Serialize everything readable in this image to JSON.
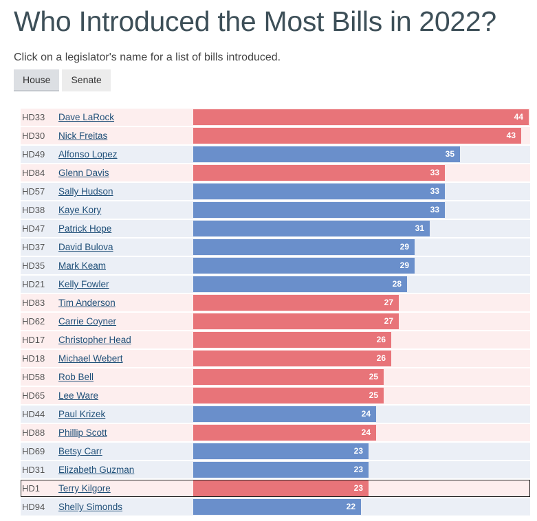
{
  "title": "Who Introduced the Most Bills in 2022?",
  "subtitle": "Click on a legislator's name for a list of bills introduced.",
  "tabs": [
    {
      "label": "House",
      "active": true
    },
    {
      "label": "Senate",
      "active": false
    }
  ],
  "colors": {
    "republican_bar": "#e87479",
    "democrat_bar": "#6a8fcb",
    "republican_row": "#fdeeee",
    "democrat_row": "#ebeff6"
  },
  "chart_data": {
    "type": "bar",
    "orientation": "horizontal",
    "xlim": [
      0,
      44
    ],
    "categories": [
      "Dave LaRock",
      "Nick Freitas",
      "Alfonso Lopez",
      "Glenn Davis",
      "Sally Hudson",
      "Kaye Kory",
      "Patrick Hope",
      "David Bulova",
      "Mark Keam",
      "Kelly Fowler",
      "Tim Anderson",
      "Carrie Coyner",
      "Christopher Head",
      "Michael Webert",
      "Rob Bell",
      "Lee Ware",
      "Paul Krizek",
      "Phillip Scott",
      "Betsy Carr",
      "Elizabeth Guzman",
      "Terry Kilgore",
      "Shelly Simonds"
    ],
    "districts": [
      "HD33",
      "HD30",
      "HD49",
      "HD84",
      "HD57",
      "HD38",
      "HD47",
      "HD37",
      "HD35",
      "HD21",
      "HD83",
      "HD62",
      "HD17",
      "HD18",
      "HD58",
      "HD65",
      "HD44",
      "HD88",
      "HD69",
      "HD31",
      "HD1",
      "HD94"
    ],
    "parties": [
      "R",
      "R",
      "D",
      "R",
      "D",
      "D",
      "D",
      "D",
      "D",
      "D",
      "R",
      "R",
      "R",
      "R",
      "R",
      "R",
      "D",
      "R",
      "D",
      "D",
      "R",
      "D"
    ],
    "values": [
      44,
      43,
      35,
      33,
      33,
      33,
      31,
      29,
      29,
      28,
      27,
      27,
      26,
      26,
      25,
      25,
      24,
      24,
      23,
      23,
      23,
      22
    ]
  }
}
